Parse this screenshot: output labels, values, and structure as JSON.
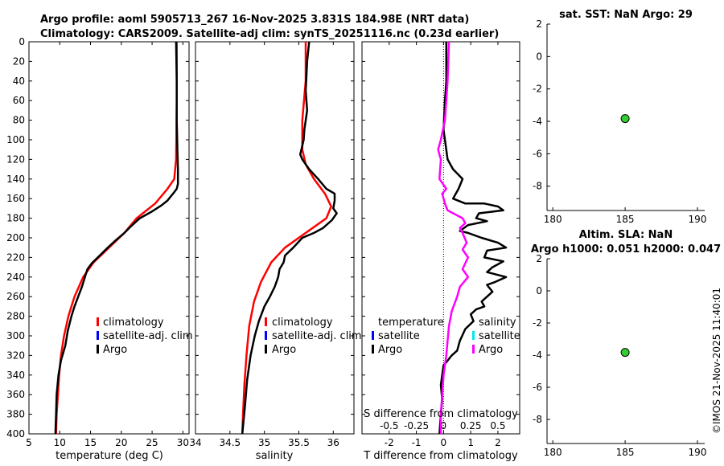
{
  "titles": {
    "line1": "Argo profile: aoml 5905713_267 16-Nov-2025 3.831S 184.98E (NRT data)",
    "line2": "Climatology: CARS2009. Satellite-adj clim: synTS_20251116.nc (0.23d earlier)",
    "sst": "sat. SST: NaN Argo: 29",
    "sla1": "Altim. SLA: NaN",
    "sla2": "Argo h1000: 0.051 h2000: 0.047"
  },
  "watermark": "©IMOS 21-Nov-2025 11:40:01",
  "colors": {
    "climatology": "#ff0000",
    "satellite": "#0000ff",
    "argo": "#000000",
    "salinity_diff": "#ff00ff",
    "salinity_sat": "#00e5ee",
    "marker": "#33cc33"
  },
  "chart_data": [
    {
      "id": "temp",
      "type": "line",
      "xlabel": "temperature (deg C)",
      "ylabel": "",
      "xlim": [
        5,
        31
      ],
      "ylim": [
        0,
        400
      ],
      "y_reversed": true,
      "xticks": [
        5,
        10,
        15,
        20,
        25,
        30
      ],
      "yticks": [
        0,
        20,
        40,
        60,
        80,
        100,
        120,
        140,
        160,
        180,
        200,
        220,
        240,
        260,
        280,
        300,
        320,
        340,
        360,
        380,
        400
      ],
      "legend": [
        "climatology",
        "satellite-adj. clim",
        "Argo"
      ],
      "series": [
        {
          "name": "climatology",
          "color_key": "climatology",
          "points": [
            [
              29,
              0
            ],
            [
              29,
              60
            ],
            [
              28.9,
              120
            ],
            [
              28.6,
              140
            ],
            [
              27.5,
              150
            ],
            [
              25.5,
              165
            ],
            [
              22.5,
              180
            ],
            [
              20.5,
              195
            ],
            [
              18,
              210
            ],
            [
              15.5,
              225
            ],
            [
              13.8,
              240
            ],
            [
              12.4,
              260
            ],
            [
              11.4,
              280
            ],
            [
              10.7,
              300
            ],
            [
              10.2,
              320
            ],
            [
              9.9,
              340
            ],
            [
              9.7,
              360
            ],
            [
              9.5,
              380
            ],
            [
              9.4,
              400
            ]
          ]
        },
        {
          "name": "Argo",
          "color_key": "argo",
          "points": [
            [
              28.9,
              0
            ],
            [
              29,
              40
            ],
            [
              29,
              80
            ],
            [
              29.1,
              110
            ],
            [
              29.2,
              130
            ],
            [
              29.2,
              145
            ],
            [
              29,
              150
            ],
            [
              28.4,
              155
            ],
            [
              27.5,
              162
            ],
            [
              26.5,
              167
            ],
            [
              25,
              173
            ],
            [
              23,
              180
            ],
            [
              21.6,
              188
            ],
            [
              20.5,
              195
            ],
            [
              19,
              203
            ],
            [
              17.8,
              210
            ],
            [
              16.5,
              218
            ],
            [
              15.2,
              226
            ],
            [
              14.5,
              232
            ],
            [
              14.1,
              240
            ],
            [
              13.6,
              250
            ],
            [
              13,
              260
            ],
            [
              12.4,
              270
            ],
            [
              11.9,
              280
            ],
            [
              11.3,
              295
            ],
            [
              10.9,
              310
            ],
            [
              10.2,
              325
            ],
            [
              9.8,
              340
            ],
            [
              9.5,
              360
            ],
            [
              9.4,
              380
            ],
            [
              9.3,
              400
            ]
          ]
        }
      ]
    },
    {
      "id": "sal",
      "type": "line",
      "xlabel": "salinity",
      "ylabel": "",
      "xlim": [
        34,
        36.3
      ],
      "ylim": [
        0,
        400
      ],
      "y_reversed": true,
      "xticks": [
        34,
        34.5,
        35,
        35.5,
        36
      ],
      "legend": [
        "climatology",
        "satellite-adj. clim",
        "Argo"
      ],
      "series": [
        {
          "name": "climatology",
          "color_key": "climatology",
          "points": [
            [
              35.6,
              0
            ],
            [
              35.6,
              40
            ],
            [
              35.55,
              80
            ],
            [
              35.55,
              110
            ],
            [
              35.6,
              125
            ],
            [
              35.72,
              140
            ],
            [
              35.88,
              155
            ],
            [
              35.97,
              168
            ],
            [
              35.9,
              180
            ],
            [
              35.6,
              195
            ],
            [
              35.3,
              210
            ],
            [
              35.1,
              225
            ],
            [
              34.95,
              245
            ],
            [
              34.85,
              265
            ],
            [
              34.78,
              290
            ],
            [
              34.74,
              320
            ],
            [
              34.71,
              350
            ],
            [
              34.69,
              380
            ],
            [
              34.68,
              400
            ]
          ]
        },
        {
          "name": "Argo",
          "color_key": "argo",
          "points": [
            [
              35.65,
              0
            ],
            [
              35.62,
              20
            ],
            [
              35.6,
              50
            ],
            [
              35.62,
              70
            ],
            [
              35.58,
              90
            ],
            [
              35.57,
              100
            ],
            [
              35.52,
              115
            ],
            [
              35.55,
              120
            ],
            [
              35.65,
              130
            ],
            [
              35.78,
              140
            ],
            [
              35.9,
              150
            ],
            [
              36.02,
              155
            ],
            [
              36.02,
              162
            ],
            [
              36.0,
              170
            ],
            [
              36.05,
              175
            ],
            [
              35.98,
              182
            ],
            [
              35.85,
              190
            ],
            [
              35.72,
              195
            ],
            [
              35.55,
              200
            ],
            [
              35.42,
              210
            ],
            [
              35.3,
              218
            ],
            [
              35.28,
              225
            ],
            [
              35.22,
              232
            ],
            [
              35.2,
              240
            ],
            [
              35.15,
              250
            ],
            [
              35.08,
              260
            ],
            [
              35.0,
              270
            ],
            [
              34.92,
              285
            ],
            [
              34.86,
              300
            ],
            [
              34.8,
              320
            ],
            [
              34.75,
              345
            ],
            [
              34.72,
              370
            ],
            [
              34.68,
              400
            ]
          ]
        }
      ]
    },
    {
      "id": "diff",
      "type": "line",
      "xlabel": "T difference from climatology",
      "xlabel_top": "S difference from climatology",
      "xlim": [
        -3,
        2.8
      ],
      "ylim": [
        0,
        400
      ],
      "y_reversed": true,
      "xticks_T": [
        -2,
        -1,
        0,
        1,
        2
      ],
      "xticks_S": [
        "-0.5",
        "-0.25",
        "0",
        "0.25",
        "0.5"
      ],
      "xticks_S_pos": [
        -2,
        -1,
        0,
        1,
        2
      ],
      "legend_left": [
        "temperature",
        "satellite",
        "Argo"
      ],
      "legend_right": [
        "salinity",
        "satellite",
        "Argo"
      ],
      "series": [
        {
          "name": "T diff Argo",
          "color_key": "argo",
          "points": [
            [
              0.1,
              0
            ],
            [
              0.1,
              40
            ],
            [
              0.05,
              60
            ],
            [
              0,
              90
            ],
            [
              0.05,
              100
            ],
            [
              0.15,
              120
            ],
            [
              0.35,
              130
            ],
            [
              0.7,
              140
            ],
            [
              0.55,
              150
            ],
            [
              0.35,
              160
            ],
            [
              0.8,
              165
            ],
            [
              1.5,
              165
            ],
            [
              2,
              168
            ],
            [
              2.2,
              172
            ],
            [
              1.3,
              175
            ],
            [
              1.2,
              180
            ],
            [
              1.6,
              183
            ],
            [
              0.9,
              187
            ],
            [
              0.6,
              193
            ],
            [
              0.9,
              195
            ],
            [
              1.4,
              200
            ],
            [
              2.0,
              205
            ],
            [
              2.3,
              210
            ],
            [
              1.6,
              213
            ],
            [
              1.5,
              220
            ],
            [
              2.2,
              224
            ],
            [
              1.8,
              230
            ],
            [
              1.6,
              235
            ],
            [
              2.3,
              240
            ],
            [
              1.9,
              245
            ],
            [
              1.6,
              248
            ],
            [
              1.8,
              255
            ],
            [
              1.4,
              265
            ],
            [
              1.5,
              270
            ],
            [
              1.2,
              273
            ],
            [
              1.0,
              278
            ],
            [
              1.1,
              285
            ],
            [
              0.8,
              293
            ],
            [
              0.6,
              305
            ],
            [
              0.5,
              315
            ],
            [
              0.3,
              320
            ],
            [
              0.1,
              327
            ],
            [
              0,
              330
            ],
            [
              -0.1,
              350
            ],
            [
              -0.05,
              365
            ],
            [
              -0.1,
              380
            ],
            [
              -0.15,
              400
            ]
          ]
        },
        {
          "name": "S diff Argo",
          "color_key": "salinity_diff",
          "points": [
            [
              0.2,
              0
            ],
            [
              0.15,
              40
            ],
            [
              0.1,
              60
            ],
            [
              0.05,
              80
            ],
            [
              -0.1,
              100
            ],
            [
              -0.2,
              110
            ],
            [
              -0.1,
              120
            ],
            [
              -0.15,
              140
            ],
            [
              0.1,
              150
            ],
            [
              -0.05,
              155
            ],
            [
              0.05,
              165
            ],
            [
              0.15,
              172
            ],
            [
              0.7,
              180
            ],
            [
              0.8,
              185
            ],
            [
              0.6,
              190
            ],
            [
              0.7,
              195
            ],
            [
              0.85,
              205
            ],
            [
              0.7,
              212
            ],
            [
              0.9,
              220
            ],
            [
              0.7,
              232
            ],
            [
              0.9,
              240
            ],
            [
              0.6,
              250
            ],
            [
              0.5,
              260
            ],
            [
              0.3,
              275
            ],
            [
              0.2,
              290
            ],
            [
              0.15,
              305
            ],
            [
              0.1,
              320
            ],
            [
              0,
              340
            ],
            [
              -0.05,
              360
            ],
            [
              -0.1,
              380
            ],
            [
              -0.1,
              400
            ]
          ]
        }
      ]
    },
    {
      "id": "sst",
      "type": "scatter",
      "xlim": [
        179.6,
        190.5
      ],
      "ylim": [
        -9.5,
        2
      ],
      "xticks": [
        180,
        185,
        190
      ],
      "yticks": [
        2,
        0,
        -2,
        -4,
        -6,
        -8
      ],
      "points": [
        [
          185,
          -3.83
        ]
      ]
    },
    {
      "id": "sla",
      "type": "scatter",
      "xlim": [
        179.6,
        190.5
      ],
      "ylim": [
        -9.5,
        2
      ],
      "xticks": [
        180,
        185,
        190
      ],
      "yticks": [
        2,
        0,
        -2,
        -4,
        -6,
        -8
      ],
      "points": [
        [
          185,
          -3.83
        ]
      ]
    }
  ]
}
